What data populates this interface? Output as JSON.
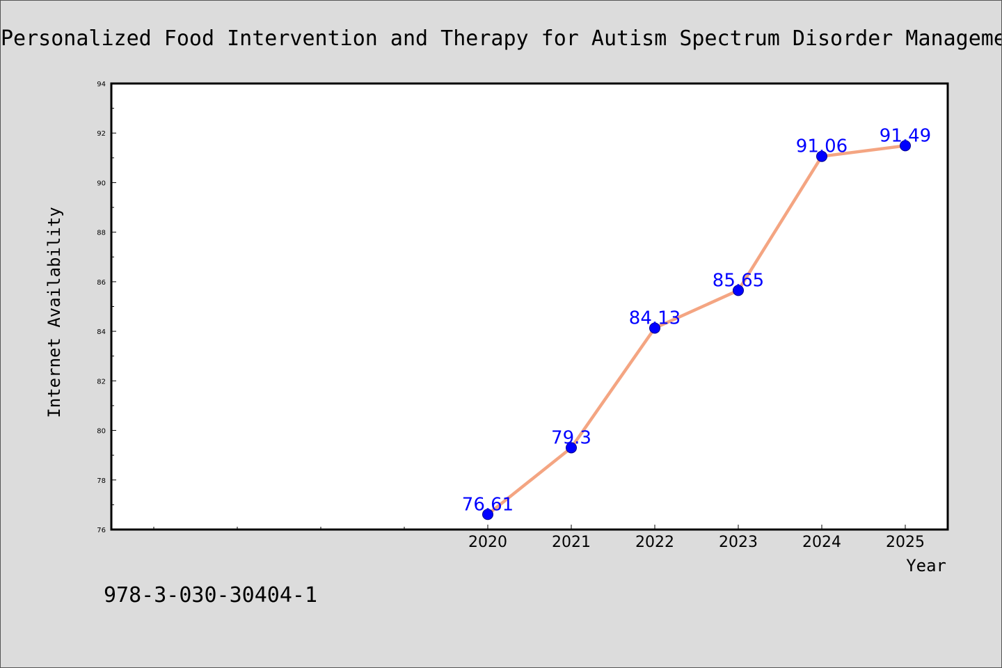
{
  "chart_data": {
    "type": "line",
    "title": "Personalized Food Intervention and Therapy for Autism Spectrum Disorder Management",
    "xlabel": "Year",
    "ylabel": "Internet Availability",
    "x": [
      "2020",
      "2021",
      "2022",
      "2023",
      "2024",
      "2025"
    ],
    "series": [
      {
        "values": [
          76.61,
          79.3,
          84.13,
          85.65,
          91.06,
          91.49
        ],
        "data_labels": [
          "76.61",
          "79.3",
          "84.13",
          "85.65",
          "91.06",
          "91.49"
        ]
      }
    ],
    "ylim": [
      76,
      94
    ],
    "yticks": [
      "76",
      "78",
      "80",
      "82",
      "84",
      "86",
      "88",
      "90",
      "92",
      "94"
    ],
    "grid": false,
    "legend": "none",
    "colors": {
      "line": "#f4a582",
      "marker": "#0000ff",
      "marker_edge": "#00008b",
      "data_label": "#0000ff",
      "plot_bg": "#ffffff",
      "page_bg": "#dcdcdc"
    }
  },
  "footer": {
    "code": "978-3-030-30404-1"
  }
}
